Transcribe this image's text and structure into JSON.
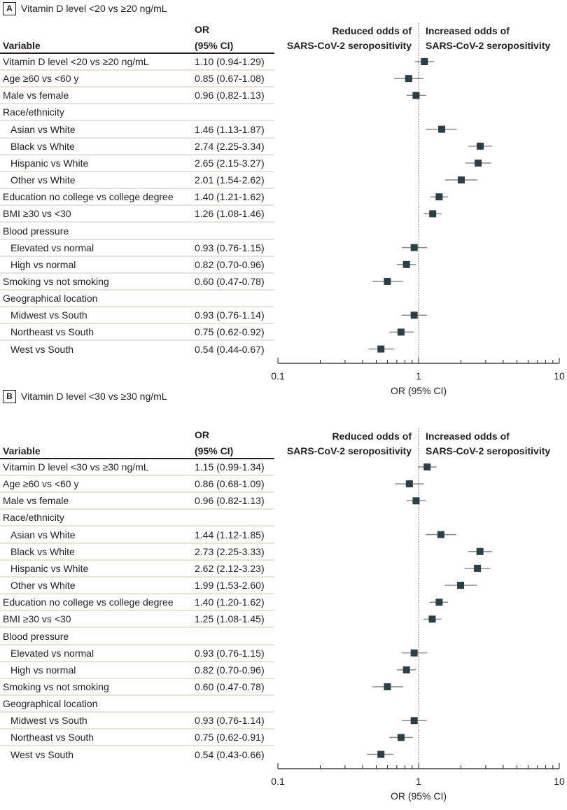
{
  "chart_data": [
    {
      "type": "forest",
      "panel_label": "A",
      "title": "Vitamin D level <20 vs ≥20 ng/mL",
      "columns": {
        "variable": "Variable",
        "or_line1": "OR",
        "or_line2": "(95% CI)"
      },
      "annotation_left": [
        "Reduced odds of",
        "SARS-CoV-2 seropositivity"
      ],
      "annotation_right": [
        "Increased odds of",
        "SARS-CoV-2 seropositivity"
      ],
      "xlabel": "OR (95% CI)",
      "xscale": "log",
      "xlim": [
        0.1,
        10
      ],
      "xticks": [
        "0.1",
        "1",
        "10"
      ],
      "reference_line": 1,
      "marker_color": "#2b3f47",
      "rows": [
        {
          "label": "Vitamin D level <20 vs ≥20 ng/mL",
          "indent": false,
          "or_text": "1.10 (0.94-1.29)",
          "or": 1.1,
          "lo": 0.94,
          "hi": 1.29
        },
        {
          "label": "Age ≥60 vs <60 y",
          "indent": false,
          "or_text": "0.85 (0.67-1.08)",
          "or": 0.85,
          "lo": 0.67,
          "hi": 1.08
        },
        {
          "label": "Male vs female",
          "indent": false,
          "or_text": "0.96 (0.82-1.13)",
          "or": 0.96,
          "lo": 0.82,
          "hi": 1.13
        },
        {
          "label": "Race/ethnicity",
          "indent": false,
          "or_text": ""
        },
        {
          "label": "Asian vs White",
          "indent": true,
          "or_text": "1.46 (1.13-1.87)",
          "or": 1.46,
          "lo": 1.13,
          "hi": 1.87
        },
        {
          "label": "Black vs White",
          "indent": true,
          "or_text": "2.74 (2.25-3.34)",
          "or": 2.74,
          "lo": 2.25,
          "hi": 3.34
        },
        {
          "label": "Hispanic vs White",
          "indent": true,
          "or_text": "2.65 (2.15-3.27)",
          "or": 2.65,
          "lo": 2.15,
          "hi": 3.27
        },
        {
          "label": "Other vs White",
          "indent": true,
          "or_text": "2.01 (1.54-2.62)",
          "or": 2.01,
          "lo": 1.54,
          "hi": 2.62
        },
        {
          "label": "Education no college vs college degree",
          "indent": false,
          "or_text": "1.40 (1.21-1.62)",
          "or": 1.4,
          "lo": 1.21,
          "hi": 1.62
        },
        {
          "label": "BMI ≥30 vs <30",
          "indent": false,
          "or_text": "1.26 (1.08-1.46)",
          "or": 1.26,
          "lo": 1.08,
          "hi": 1.46
        },
        {
          "label": "Blood pressure",
          "indent": false,
          "or_text": ""
        },
        {
          "label": "Elevated vs normal",
          "indent": true,
          "or_text": "0.93 (0.76-1.15)",
          "or": 0.93,
          "lo": 0.76,
          "hi": 1.15
        },
        {
          "label": "High vs normal",
          "indent": true,
          "or_text": "0.82 (0.70-0.96)",
          "or": 0.82,
          "lo": 0.7,
          "hi": 0.96
        },
        {
          "label": "Smoking vs not smoking",
          "indent": false,
          "or_text": "0.60 (0.47-0.78)",
          "or": 0.6,
          "lo": 0.47,
          "hi": 0.78
        },
        {
          "label": "Geographical location",
          "indent": false,
          "or_text": ""
        },
        {
          "label": "Midwest vs South",
          "indent": true,
          "or_text": "0.93 (0.76-1.14)",
          "or": 0.93,
          "lo": 0.76,
          "hi": 1.14
        },
        {
          "label": "Northeast vs South",
          "indent": true,
          "or_text": "0.75 (0.62-0.92)",
          "or": 0.75,
          "lo": 0.62,
          "hi": 0.92
        },
        {
          "label": "West vs South",
          "indent": true,
          "or_text": "0.54 (0.44-0.67)",
          "or": 0.54,
          "lo": 0.44,
          "hi": 0.67
        }
      ]
    },
    {
      "type": "forest",
      "panel_label": "B",
      "title": "Vitamin D level <30 vs ≥30 ng/mL",
      "columns": {
        "variable": "Variable",
        "or_line1": "OR",
        "or_line2": "(95% CI)"
      },
      "annotation_left": [
        "Reduced odds of",
        "SARS-CoV-2 seropositivity"
      ],
      "annotation_right": [
        "Increased odds of",
        "SARS-CoV-2 seropositivity"
      ],
      "xlabel": "OR (95% CI)",
      "xscale": "log",
      "xlim": [
        0.1,
        10
      ],
      "xticks": [
        "0.1",
        "1",
        "10"
      ],
      "reference_line": 1,
      "marker_color": "#2b3f47",
      "rows": [
        {
          "label": "Vitamin D level <30 vs ≥30 ng/mL",
          "indent": false,
          "or_text": "1.15 (0.99-1.34)",
          "or": 1.15,
          "lo": 0.99,
          "hi": 1.34
        },
        {
          "label": "Age ≥60 vs <60 y",
          "indent": false,
          "or_text": "0.86 (0.68-1.09)",
          "or": 0.86,
          "lo": 0.68,
          "hi": 1.09
        },
        {
          "label": "Male vs female",
          "indent": false,
          "or_text": "0.96 (0.82-1.13)",
          "or": 0.96,
          "lo": 0.82,
          "hi": 1.13
        },
        {
          "label": "Race/ethnicity",
          "indent": false,
          "or_text": ""
        },
        {
          "label": "Asian vs White",
          "indent": true,
          "or_text": "1.44 (1.12-1.85)",
          "or": 1.44,
          "lo": 1.12,
          "hi": 1.85
        },
        {
          "label": "Black vs White",
          "indent": true,
          "or_text": "2.73 (2.25-3.33)",
          "or": 2.73,
          "lo": 2.25,
          "hi": 3.33
        },
        {
          "label": "Hispanic vs White",
          "indent": true,
          "or_text": "2.62 (2.12-3.23)",
          "or": 2.62,
          "lo": 2.12,
          "hi": 3.23
        },
        {
          "label": "Other vs White",
          "indent": true,
          "or_text": "1.99 (1.53-2.60)",
          "or": 1.99,
          "lo": 1.53,
          "hi": 2.6
        },
        {
          "label": "Education no college vs college degree",
          "indent": false,
          "or_text": "1.40 (1.20-1.62)",
          "or": 1.4,
          "lo": 1.2,
          "hi": 1.62
        },
        {
          "label": "BMI ≥30 vs <30",
          "indent": false,
          "or_text": "1.25 (1.08-1.45)",
          "or": 1.25,
          "lo": 1.08,
          "hi": 1.45
        },
        {
          "label": "Blood pressure",
          "indent": false,
          "or_text": ""
        },
        {
          "label": "Elevated vs normal",
          "indent": true,
          "or_text": "0.93 (0.76-1.15)",
          "or": 0.93,
          "lo": 0.76,
          "hi": 1.15
        },
        {
          "label": "High vs normal",
          "indent": true,
          "or_text": "0.82 (0.70-0.96)",
          "or": 0.82,
          "lo": 0.7,
          "hi": 0.96
        },
        {
          "label": "Smoking vs not smoking",
          "indent": false,
          "or_text": "0.60 (0.47-0.78)",
          "or": 0.6,
          "lo": 0.47,
          "hi": 0.78
        },
        {
          "label": "Geographical location",
          "indent": false,
          "or_text": ""
        },
        {
          "label": "Midwest vs South",
          "indent": true,
          "or_text": "0.93 (0.76-1.14)",
          "or": 0.93,
          "lo": 0.76,
          "hi": 1.14
        },
        {
          "label": "Northeast vs South",
          "indent": true,
          "or_text": "0.75 (0.62-0.91)",
          "or": 0.75,
          "lo": 0.62,
          "hi": 0.91
        },
        {
          "label": "West vs South",
          "indent": true,
          "or_text": "0.54 (0.43-0.66)",
          "or": 0.54,
          "lo": 0.43,
          "hi": 0.66
        }
      ]
    }
  ]
}
